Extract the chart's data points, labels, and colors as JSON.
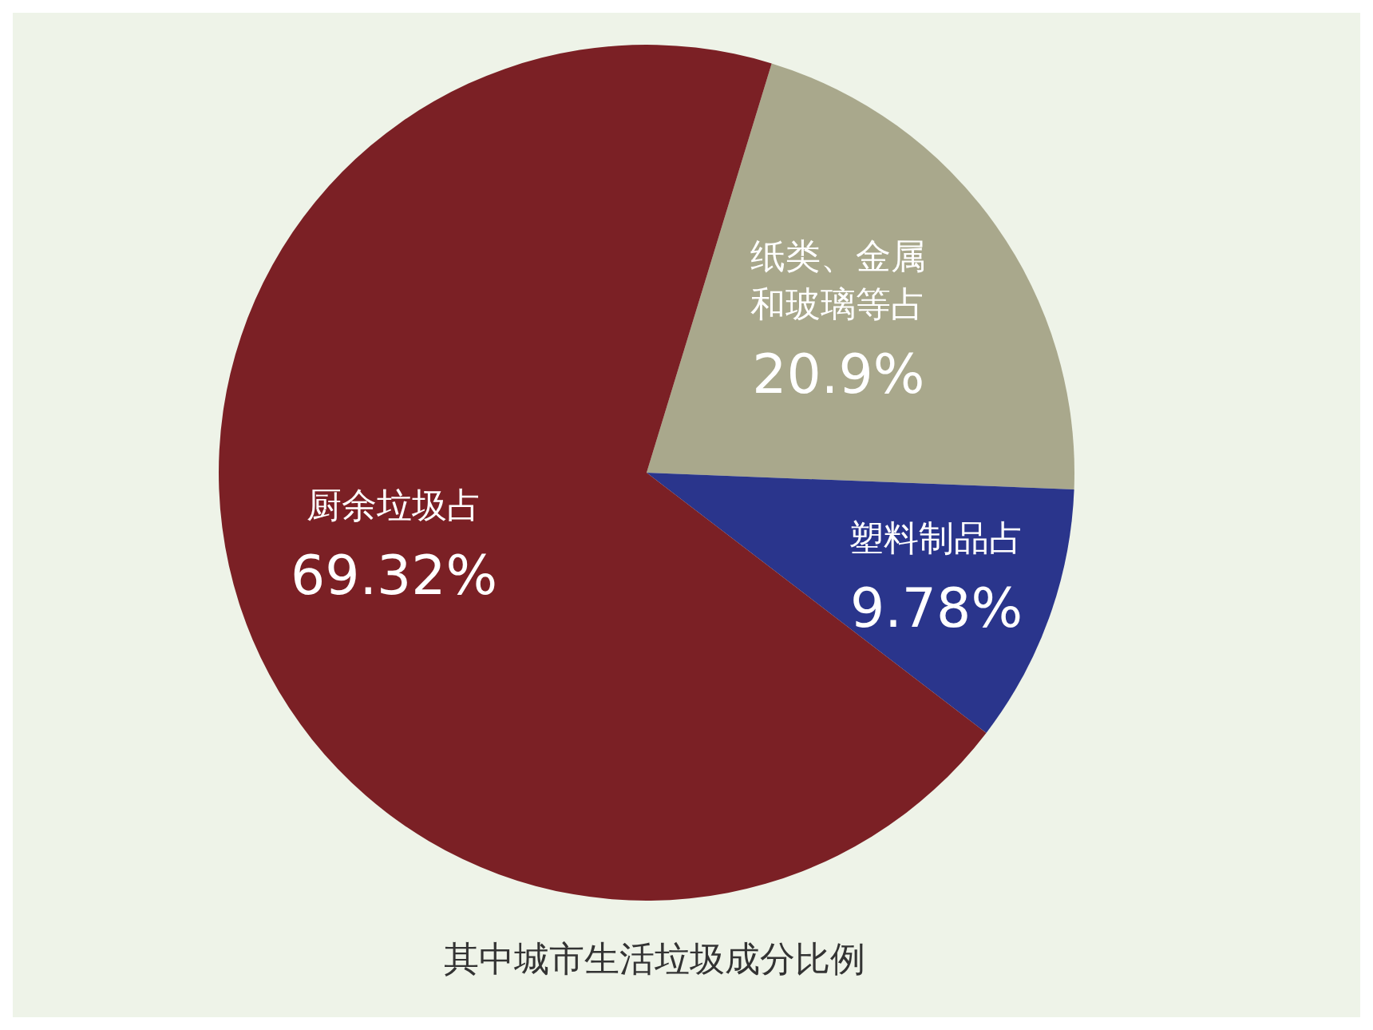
{
  "chart_data": {
    "type": "pie",
    "title": "其中城市生活垃圾成分比例",
    "categories": [
      "纸类、金属和玻璃等占",
      "塑料制品占",
      "厨余垃圾占"
    ],
    "values": [
      20.9,
      9.78,
      69.32
    ],
    "colors": [
      "#a9a88c",
      "#2a358c",
      "#7b2025"
    ],
    "value_labels": [
      "20.9%",
      "9.78%",
      "69.32%"
    ]
  }
}
